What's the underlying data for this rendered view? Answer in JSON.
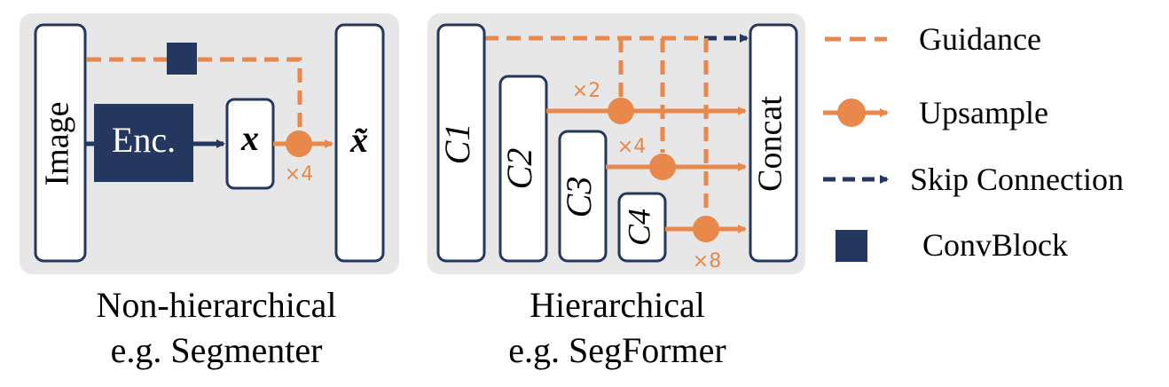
{
  "left_panel": {
    "image_label": "Image",
    "encoder_label": "Enc.",
    "x_label": "x",
    "xtilde_label": "x̃",
    "upsample_factor": "×4",
    "caption_line1": "Non-hierarchical",
    "caption_line2": "e.g. Segmenter"
  },
  "right_panel": {
    "c1_label": "C1",
    "c2_label": "C2",
    "c3_label": "C3",
    "c4_label": "C4",
    "concat_label": "Concat",
    "factor_c2": "×2",
    "factor_c3": "×4",
    "factor_c4": "×8",
    "caption_line1": "Hierarchical",
    "caption_line2": "e.g. SegFormer"
  },
  "legend": {
    "guidance": "Guidance",
    "upsample": "Upsample",
    "skip": "Skip Connection",
    "convblock": "ConvBlock"
  },
  "colors": {
    "orange": "#E8884A",
    "navy": "#24375E",
    "panel_bg": "#E7E7E7",
    "box_stroke": "#24375E"
  }
}
